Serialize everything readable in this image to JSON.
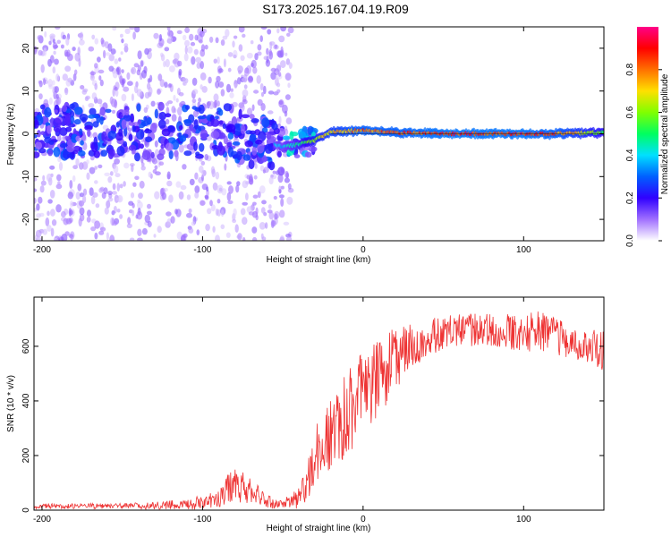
{
  "title": "S173.2025.167.04.19.R09",
  "colors": {
    "snr_line": "#ee3333",
    "axis": "#000000"
  },
  "chart_data": [
    {
      "type": "heatmap",
      "xlabel": "Height of straight line (km)",
      "ylabel": "Frequency (Hz)",
      "xlim": [
        -205,
        150
      ],
      "ylim": [
        -25,
        25
      ],
      "xticks": [
        -200,
        -100,
        0,
        100
      ],
      "yticks": [
        -20,
        -10,
        0,
        10,
        20
      ],
      "colorbar": {
        "label": "Normalized spectral amplitude",
        "range": [
          0,
          1
        ],
        "ticks": [
          "0.0",
          "0.2",
          "0.4",
          "0.6",
          "0.8"
        ]
      },
      "ridge": [
        {
          "x": -200,
          "f": 0.5,
          "a": 0.25
        },
        {
          "x": -150,
          "f": 0.5,
          "a": 0.3
        },
        {
          "x": -100,
          "f": 0.5,
          "a": 0.3
        },
        {
          "x": -90,
          "f": 1.0,
          "a": 0.35
        },
        {
          "x": -70,
          "f": -1.5,
          "a": 0.35
        },
        {
          "x": -50,
          "f": -3.0,
          "a": 0.4
        },
        {
          "x": -40,
          "f": -2.5,
          "a": 0.5
        },
        {
          "x": -30,
          "f": -1.5,
          "a": 0.65
        },
        {
          "x": -20,
          "f": 0.5,
          "a": 0.75
        },
        {
          "x": 0,
          "f": 0.8,
          "a": 0.85
        },
        {
          "x": 20,
          "f": 0.3,
          "a": 0.85
        },
        {
          "x": 50,
          "f": 0.0,
          "a": 0.9
        },
        {
          "x": 100,
          "f": 0.0,
          "a": 0.9
        },
        {
          "x": 120,
          "f": 0.0,
          "a": 0.85
        },
        {
          "x": 150,
          "f": 0.3,
          "a": 0.6
        }
      ]
    },
    {
      "type": "line",
      "xlabel": "Height of straight line (km)",
      "ylabel": "SNR (10 * v/v)",
      "xlim": [
        -205,
        150
      ],
      "ylim": [
        0,
        780
      ],
      "xticks": [
        -200,
        -100,
        0,
        100
      ],
      "yticks": [
        0,
        200,
        400,
        600
      ],
      "series": [
        {
          "x": [
            -205,
            -150,
            -110,
            -90,
            -80,
            -70,
            -60,
            -50,
            -40,
            -35,
            -30,
            -20,
            -10,
            0,
            10,
            20,
            30,
            40,
            50,
            60,
            80,
            100,
            110,
            120,
            130,
            140,
            150
          ],
          "y": [
            15,
            15,
            20,
            40,
            110,
            70,
            30,
            20,
            40,
            100,
            200,
            280,
            360,
            420,
            480,
            560,
            600,
            630,
            650,
            660,
            660,
            650,
            660,
            640,
            610,
            600,
            580
          ],
          "fluct": [
            10,
            10,
            20,
            30,
            80,
            50,
            25,
            20,
            40,
            70,
            100,
            140,
            160,
            160,
            140,
            120,
            80,
            70,
            60,
            60,
            60,
            70,
            80,
            70,
            60,
            60,
            80
          ]
        }
      ]
    }
  ]
}
